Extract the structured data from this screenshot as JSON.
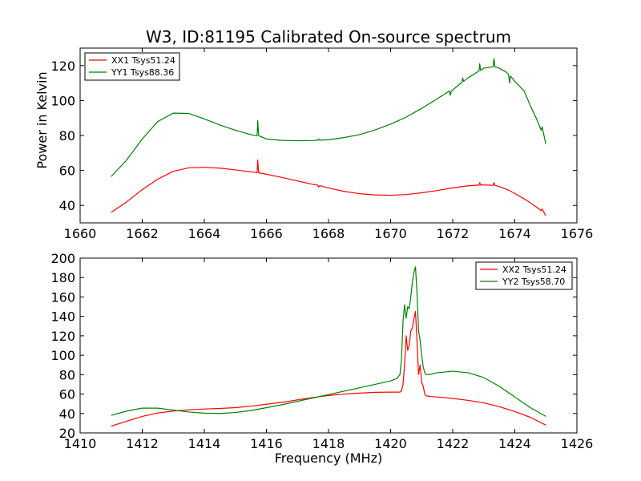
{
  "chart_data": [
    {
      "type": "line",
      "title": "W3, ID:81195 Calibrated On-source spectrum",
      "xlabel": "",
      "ylabel": "Power in Kelvin",
      "xlim": [
        1660,
        1676
      ],
      "ylim": [
        30,
        130
      ],
      "xticks": [
        1660,
        1662,
        1664,
        1666,
        1668,
        1670,
        1672,
        1674,
        1676
      ],
      "yticks": [
        40,
        60,
        80,
        100,
        120
      ],
      "legend_position": "top-left",
      "series": [
        {
          "name": "XX1 Tsys51.24",
          "color": "#ff0000",
          "x": [
            1661.0,
            1661.5,
            1662.0,
            1662.5,
            1663.0,
            1663.5,
            1664.0,
            1664.5,
            1665.0,
            1665.5,
            1665.7,
            1665.72,
            1665.75,
            1665.8,
            1666.0,
            1666.5,
            1667.0,
            1667.5,
            1667.65,
            1667.68,
            1667.72,
            1668.0,
            1668.5,
            1669.0,
            1669.5,
            1670.0,
            1670.5,
            1671.0,
            1671.5,
            1672.0,
            1672.5,
            1672.85,
            1672.87,
            1672.9,
            1673.0,
            1673.3,
            1673.33,
            1673.36,
            1673.5,
            1673.8,
            1674.0,
            1674.3,
            1674.5,
            1674.7,
            1674.85,
            1674.88,
            1675.0
          ],
          "values": [
            36,
            42,
            49,
            55,
            59.5,
            61.5,
            61.8,
            61.3,
            60.3,
            59.2,
            58.7,
            66,
            58.6,
            58.5,
            57.8,
            56,
            54,
            52,
            51.6,
            50.5,
            51.3,
            50,
            48,
            46.7,
            46,
            45.8,
            46.2,
            47.2,
            48.5,
            50,
            51.2,
            51.6,
            53,
            51.6,
            51.7,
            51.5,
            53,
            51.4,
            50.8,
            48.7,
            46.8,
            43.8,
            41.5,
            39,
            37,
            38,
            34
          ]
        },
        {
          "name": "YY1 Tsys88.36",
          "color": "#008000",
          "x": [
            1661.0,
            1661.5,
            1662.0,
            1662.5,
            1663.0,
            1663.5,
            1664.0,
            1664.5,
            1665.0,
            1665.5,
            1665.7,
            1665.72,
            1665.75,
            1665.8,
            1666.0,
            1666.5,
            1667.0,
            1667.5,
            1667.65,
            1667.68,
            1667.72,
            1668.0,
            1668.5,
            1669.0,
            1669.5,
            1670.0,
            1670.5,
            1671.0,
            1671.5,
            1671.9,
            1671.92,
            1671.95,
            1672.0,
            1672.3,
            1672.32,
            1672.35,
            1672.5,
            1672.85,
            1672.87,
            1672.9,
            1673.0,
            1673.3,
            1673.33,
            1673.36,
            1673.5,
            1673.7,
            1673.8,
            1673.83,
            1673.86,
            1674.0,
            1674.3,
            1674.5,
            1674.7,
            1674.85,
            1674.88,
            1675.0
          ],
          "values": [
            56.5,
            66,
            78,
            88,
            92.8,
            92.6,
            89.5,
            86,
            83,
            80.5,
            79.8,
            88.5,
            80,
            79.5,
            78,
            77.2,
            77,
            77.1,
            77.3,
            78,
            77.3,
            77.6,
            78.8,
            80.5,
            83.2,
            86.5,
            90.5,
            95.5,
            101,
            105.5,
            103,
            105,
            106,
            110.5,
            113,
            111,
            113,
            117,
            121,
            117.2,
            118.5,
            119.3,
            124,
            119.2,
            118.5,
            116.5,
            115,
            110,
            114,
            111,
            105.5,
            97,
            89.5,
            83,
            85,
            75
          ]
        }
      ]
    },
    {
      "type": "line",
      "title": "",
      "xlabel": "Frequency (MHz)",
      "ylabel": "",
      "xlim": [
        1410,
        1426
      ],
      "ylim": [
        20,
        200
      ],
      "xticks": [
        1410,
        1412,
        1414,
        1416,
        1418,
        1420,
        1422,
        1424,
        1426
      ],
      "yticks": [
        20,
        40,
        60,
        80,
        100,
        120,
        140,
        160,
        180,
        200
      ],
      "legend_position": "top-right",
      "series": [
        {
          "name": "XX2 Tsys51.24",
          "color": "#ff0000",
          "x": [
            1411.0,
            1411.5,
            1412.0,
            1412.5,
            1413.0,
            1413.5,
            1414.0,
            1414.5,
            1415.0,
            1415.5,
            1416.0,
            1416.5,
            1417.0,
            1417.5,
            1418.0,
            1418.5,
            1419.0,
            1419.5,
            1420.0,
            1420.2,
            1420.3,
            1420.35,
            1420.4,
            1420.45,
            1420.5,
            1420.55,
            1420.6,
            1420.65,
            1420.7,
            1420.75,
            1420.8,
            1420.85,
            1420.9,
            1420.95,
            1421.0,
            1421.05,
            1421.1,
            1421.15,
            1421.2,
            1421.3,
            1421.5,
            1422.0,
            1422.5,
            1423.0,
            1423.5,
            1424.0,
            1424.5,
            1425.0
          ],
          "values": [
            27,
            32,
            37,
            40.5,
            42.5,
            43.8,
            44.6,
            45.2,
            46,
            47.5,
            49.5,
            51.5,
            54,
            56.5,
            58.5,
            60,
            61,
            61.8,
            62,
            62,
            62,
            63,
            70,
            90,
            120,
            105,
            110,
            125,
            128,
            137,
            145,
            115,
            80,
            90,
            72,
            68,
            60,
            58,
            58,
            57.5,
            57,
            55.5,
            53.5,
            51,
            47,
            42,
            36,
            28
          ]
        },
        {
          "name": "YY2 Tsys58.70",
          "color": "#008000",
          "x": [
            1411.0,
            1411.5,
            1412.0,
            1412.5,
            1413.0,
            1413.5,
            1414.0,
            1414.5,
            1415.0,
            1415.5,
            1416.0,
            1416.5,
            1417.0,
            1417.5,
            1418.0,
            1418.5,
            1419.0,
            1419.5,
            1420.0,
            1420.2,
            1420.3,
            1420.35,
            1420.4,
            1420.45,
            1420.5,
            1420.55,
            1420.6,
            1420.65,
            1420.7,
            1420.75,
            1420.8,
            1420.85,
            1420.9,
            1420.95,
            1421.0,
            1421.05,
            1421.1,
            1421.15,
            1421.2,
            1421.3,
            1421.5,
            1422.0,
            1422.5,
            1423.0,
            1423.5,
            1424.0,
            1424.5,
            1425.0
          ],
          "values": [
            38,
            42.5,
            45.5,
            45.5,
            43.5,
            41.5,
            40.3,
            40,
            41,
            43,
            46,
            49,
            52.5,
            56,
            59.5,
            63,
            66.5,
            70,
            73.5,
            76,
            80,
            95,
            135,
            152,
            138,
            150,
            148,
            160,
            175,
            185,
            191,
            165,
            125,
            115,
            100,
            88,
            82,
            80,
            80,
            80.5,
            82,
            83.5,
            82,
            77,
            68,
            57,
            46,
            37
          ]
        }
      ]
    }
  ]
}
